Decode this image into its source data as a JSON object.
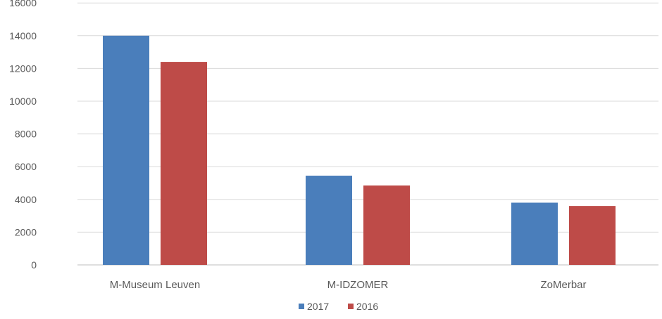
{
  "chart_data": {
    "type": "bar",
    "categories": [
      "M-Museum Leuven",
      "M-IDZOMER",
      "ZoMerbar"
    ],
    "series": [
      {
        "name": "2017",
        "color": "#4a7ebb",
        "values": [
          14000,
          5450,
          3800
        ]
      },
      {
        "name": "2016",
        "color": "#be4b48",
        "values": [
          12400,
          4850,
          3600
        ]
      }
    ],
    "y_ticks": [
      "0",
      "2000",
      "4000",
      "6000",
      "8000",
      "10000",
      "12000",
      "14000",
      "16000"
    ],
    "ylim": [
      0,
      16000
    ],
    "grid": true,
    "legend_position": "bottom",
    "title": "",
    "xlabel": "",
    "ylabel": ""
  }
}
